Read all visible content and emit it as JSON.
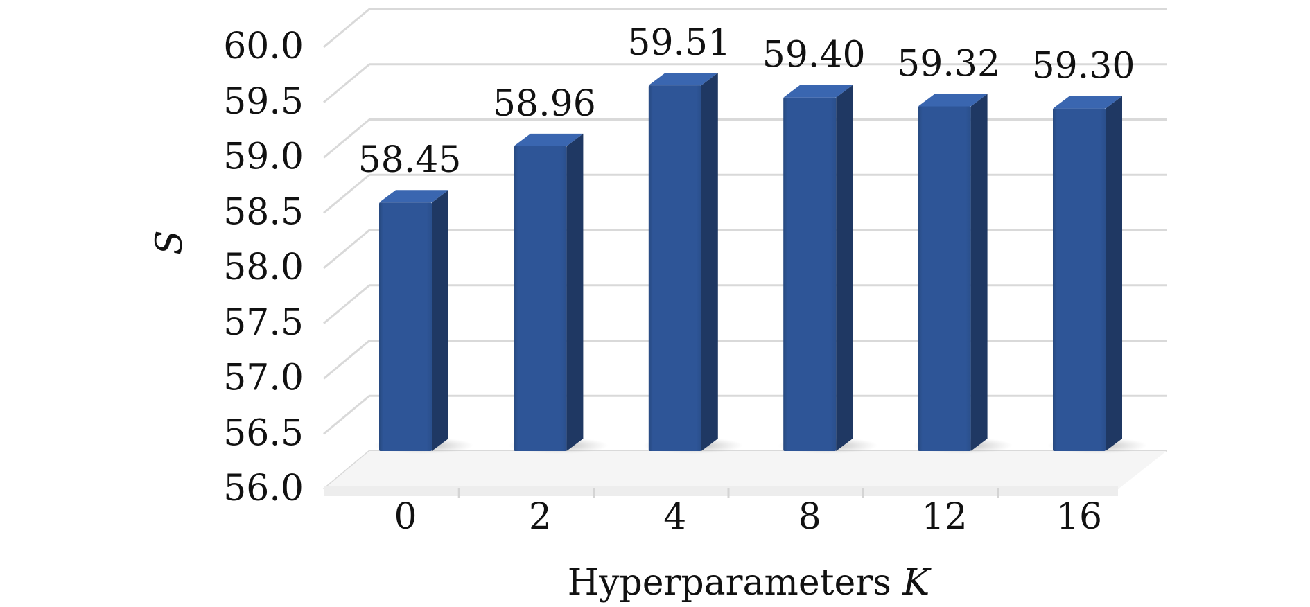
{
  "chart_data": {
    "type": "bar",
    "categories": [
      "0",
      "2",
      "4",
      "8",
      "12",
      "16"
    ],
    "values": [
      58.45,
      58.96,
      59.51,
      59.4,
      59.32,
      59.3
    ],
    "data_labels": [
      "58.45",
      "58.96",
      "59.51",
      "59.40",
      "59.32",
      "59.30"
    ],
    "xlabel_text": "Hyperparameters ",
    "xlabel_var": "K",
    "ylabel": "S",
    "ylim": [
      56.0,
      60.0
    ],
    "yticks": [
      56.0,
      56.5,
      57.0,
      57.5,
      58.0,
      58.5,
      59.0,
      59.5,
      60.0
    ],
    "ytick_labels": [
      "56.0",
      "56.5",
      "57.0",
      "57.5",
      "58.0",
      "58.5",
      "59.0",
      "59.5",
      "60.0"
    ],
    "grid": true,
    "legend": "none",
    "style": "3d-column",
    "colors": {
      "bar_front": "#2E5597",
      "bar_side": "#1F3863",
      "bar_top": "#3A66B0",
      "grid": "#D9D9D9",
      "floor": "#EDEDED"
    }
  }
}
